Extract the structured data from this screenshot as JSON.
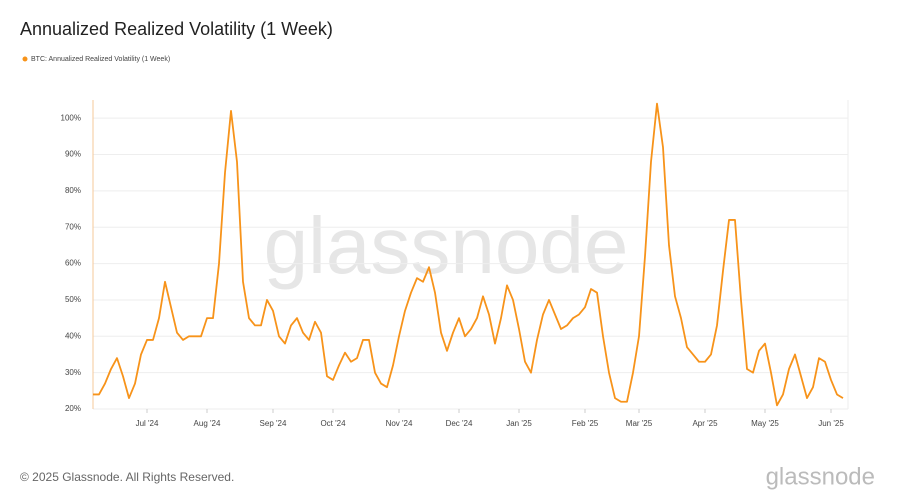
{
  "chart_data": {
    "type": "line",
    "title": "Annualized Realized Volatility (1 Week)",
    "watermark": "glassnode",
    "footer": "© 2025 Glassnode. All Rights Reserved.",
    "brand": "glassnode",
    "categories": [
      null,
      null,
      null,
      null,
      null,
      null,
      null,
      null,
      null,
      "Jul '24",
      null,
      null,
      null,
      null,
      null,
      null,
      null,
      null,
      null,
      "Aug '24",
      null,
      null,
      null,
      null,
      null,
      null,
      null,
      null,
      null,
      null,
      "Sep '24",
      null,
      null,
      null,
      null,
      null,
      null,
      null,
      null,
      null,
      "Oct '24",
      null,
      null,
      null,
      null,
      null,
      null,
      null,
      null,
      null,
      null,
      "Nov '24",
      null,
      null,
      null,
      null,
      null,
      null,
      null,
      null,
      null,
      "Dec '24",
      null,
      null,
      null,
      null,
      null,
      null,
      null,
      null,
      null,
      "Jan '25",
      null,
      null,
      null,
      null,
      null,
      null,
      null,
      null,
      null,
      null,
      "Feb '25",
      null,
      null,
      null,
      null,
      null,
      null,
      null,
      null,
      "Mar '25",
      null,
      null,
      null,
      null,
      null,
      null,
      null,
      null,
      null,
      null,
      "Apr '25",
      null,
      null,
      null,
      null,
      null,
      null,
      null,
      null,
      null,
      "May '25",
      null,
      null,
      null,
      null,
      null,
      null,
      null,
      null,
      null,
      null,
      "Jun '25",
      null,
      null
    ],
    "series": [
      {
        "name": "BTC: Annualized Realized Volatility (1 Week)",
        "color": "#f7931a",
        "values": [
          24,
          24,
          27,
          31,
          34,
          29,
          23,
          27,
          35,
          39,
          39,
          45,
          55,
          48,
          41,
          39,
          40,
          40,
          40,
          45,
          45,
          60,
          85,
          102,
          88,
          55,
          45,
          43,
          43,
          50,
          47,
          40,
          38,
          43,
          45,
          41,
          39,
          44,
          41,
          29,
          28,
          32,
          35.5,
          33,
          34,
          39,
          39,
          30,
          27,
          26,
          32,
          40,
          47,
          52,
          56,
          55,
          59,
          52,
          41,
          36,
          41,
          45,
          40,
          42,
          45,
          51,
          46,
          38,
          45,
          54,
          50,
          42,
          33,
          30,
          39,
          46,
          50,
          46,
          42,
          43,
          45,
          46,
          48,
          53,
          52,
          40,
          30,
          23,
          22,
          22,
          30,
          40,
          62,
          88,
          104,
          92,
          65,
          51,
          45,
          37,
          35,
          33,
          33,
          35,
          43,
          58,
          72,
          72,
          50,
          31,
          30,
          36,
          38,
          30,
          21,
          24,
          31,
          35,
          29,
          23,
          26,
          34,
          33,
          28,
          24,
          23
        ]
      }
    ],
    "ylim": [
      20,
      105
    ],
    "yticks": [
      {
        "value": 20,
        "label": "20%"
      },
      {
        "value": 30,
        "label": "30%"
      },
      {
        "value": 40,
        "label": "40%"
      },
      {
        "value": 50,
        "label": "50%"
      },
      {
        "value": 60,
        "label": "60%"
      },
      {
        "value": 70,
        "label": "70%"
      },
      {
        "value": 80,
        "label": "80%"
      },
      {
        "value": 90,
        "label": "90%"
      },
      {
        "value": 100,
        "label": "100%"
      }
    ],
    "grid": true
  }
}
